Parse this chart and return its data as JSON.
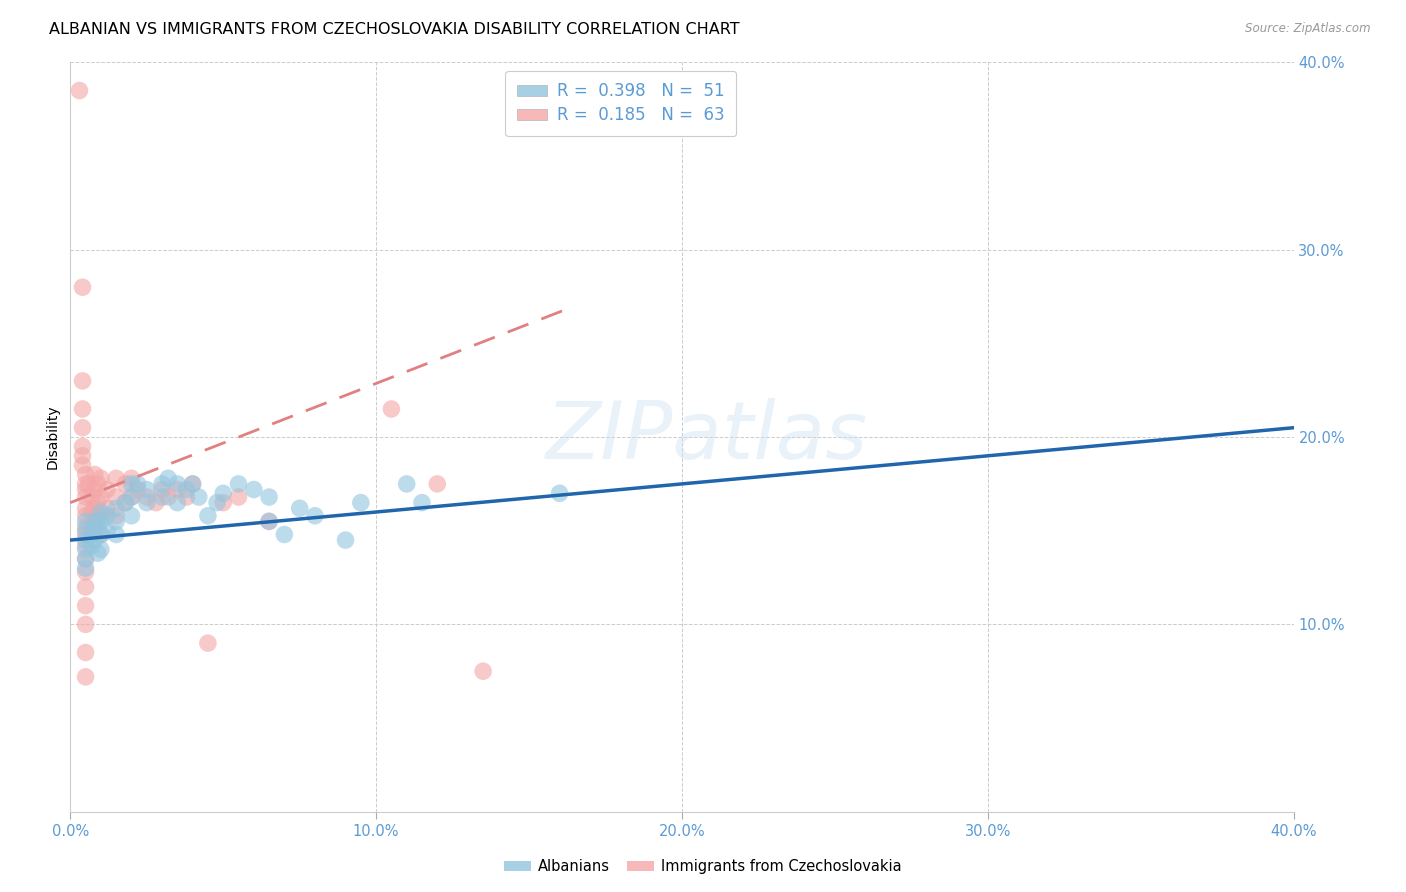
{
  "title": "ALBANIAN VS IMMIGRANTS FROM CZECHOSLOVAKIA DISABILITY CORRELATION CHART",
  "source": "Source: ZipAtlas.com",
  "ylabel": "Disability",
  "watermark": "ZIPatlas",
  "xlim": [
    0.0,
    0.4
  ],
  "ylim": [
    0.0,
    0.4
  ],
  "xticks": [
    0.0,
    0.1,
    0.2,
    0.3,
    0.4
  ],
  "yticks": [
    0.1,
    0.2,
    0.3,
    0.4
  ],
  "xticklabels": [
    "0.0%",
    "10.0%",
    "20.0%",
    "30.0%",
    "40.0%"
  ],
  "yticklabels": [
    "10.0%",
    "20.0%",
    "30.0%",
    "40.0%"
  ],
  "blue_R": 0.398,
  "blue_N": 51,
  "pink_R": 0.185,
  "pink_N": 63,
  "blue_color": "#92c5de",
  "pink_color": "#f4a6a6",
  "blue_line_color": "#2166ac",
  "pink_line_color": "#e08080",
  "blue_scatter": [
    [
      0.005,
      0.155
    ],
    [
      0.005,
      0.15
    ],
    [
      0.005,
      0.145
    ],
    [
      0.005,
      0.14
    ],
    [
      0.005,
      0.135
    ],
    [
      0.005,
      0.13
    ],
    [
      0.007,
      0.148
    ],
    [
      0.007,
      0.142
    ],
    [
      0.008,
      0.155
    ],
    [
      0.008,
      0.145
    ],
    [
      0.009,
      0.152
    ],
    [
      0.009,
      0.138
    ],
    [
      0.01,
      0.16
    ],
    [
      0.01,
      0.155
    ],
    [
      0.01,
      0.148
    ],
    [
      0.01,
      0.14
    ],
    [
      0.012,
      0.158
    ],
    [
      0.012,
      0.15
    ],
    [
      0.015,
      0.162
    ],
    [
      0.015,
      0.155
    ],
    [
      0.015,
      0.148
    ],
    [
      0.018,
      0.165
    ],
    [
      0.02,
      0.175
    ],
    [
      0.02,
      0.168
    ],
    [
      0.02,
      0.158
    ],
    [
      0.022,
      0.175
    ],
    [
      0.025,
      0.172
    ],
    [
      0.025,
      0.165
    ],
    [
      0.03,
      0.175
    ],
    [
      0.03,
      0.168
    ],
    [
      0.032,
      0.178
    ],
    [
      0.035,
      0.175
    ],
    [
      0.035,
      0.165
    ],
    [
      0.038,
      0.172
    ],
    [
      0.04,
      0.175
    ],
    [
      0.042,
      0.168
    ],
    [
      0.045,
      0.158
    ],
    [
      0.048,
      0.165
    ],
    [
      0.05,
      0.17
    ],
    [
      0.055,
      0.175
    ],
    [
      0.06,
      0.172
    ],
    [
      0.065,
      0.168
    ],
    [
      0.065,
      0.155
    ],
    [
      0.07,
      0.148
    ],
    [
      0.075,
      0.162
    ],
    [
      0.08,
      0.158
    ],
    [
      0.09,
      0.145
    ],
    [
      0.095,
      0.165
    ],
    [
      0.11,
      0.175
    ],
    [
      0.115,
      0.165
    ],
    [
      0.16,
      0.17
    ]
  ],
  "pink_scatter": [
    [
      0.003,
      0.385
    ],
    [
      0.004,
      0.28
    ],
    [
      0.004,
      0.23
    ],
    [
      0.004,
      0.215
    ],
    [
      0.004,
      0.205
    ],
    [
      0.004,
      0.195
    ],
    [
      0.004,
      0.19
    ],
    [
      0.004,
      0.185
    ],
    [
      0.005,
      0.18
    ],
    [
      0.005,
      0.175
    ],
    [
      0.005,
      0.172
    ],
    [
      0.005,
      0.168
    ],
    [
      0.005,
      0.162
    ],
    [
      0.005,
      0.158
    ],
    [
      0.005,
      0.152
    ],
    [
      0.005,
      0.148
    ],
    [
      0.005,
      0.142
    ],
    [
      0.005,
      0.135
    ],
    [
      0.005,
      0.128
    ],
    [
      0.005,
      0.12
    ],
    [
      0.005,
      0.11
    ],
    [
      0.005,
      0.1
    ],
    [
      0.005,
      0.085
    ],
    [
      0.005,
      0.072
    ],
    [
      0.006,
      0.175
    ],
    [
      0.007,
      0.168
    ],
    [
      0.007,
      0.16
    ],
    [
      0.007,
      0.152
    ],
    [
      0.008,
      0.18
    ],
    [
      0.008,
      0.172
    ],
    [
      0.008,
      0.162
    ],
    [
      0.008,
      0.152
    ],
    [
      0.009,
      0.175
    ],
    [
      0.009,
      0.165
    ],
    [
      0.009,
      0.158
    ],
    [
      0.01,
      0.178
    ],
    [
      0.01,
      0.168
    ],
    [
      0.01,
      0.158
    ],
    [
      0.01,
      0.148
    ],
    [
      0.012,
      0.172
    ],
    [
      0.012,
      0.162
    ],
    [
      0.015,
      0.178
    ],
    [
      0.015,
      0.168
    ],
    [
      0.015,
      0.158
    ],
    [
      0.018,
      0.175
    ],
    [
      0.018,
      0.165
    ],
    [
      0.02,
      0.178
    ],
    [
      0.02,
      0.168
    ],
    [
      0.022,
      0.172
    ],
    [
      0.025,
      0.168
    ],
    [
      0.028,
      0.165
    ],
    [
      0.03,
      0.172
    ],
    [
      0.032,
      0.168
    ],
    [
      0.035,
      0.172
    ],
    [
      0.038,
      0.168
    ],
    [
      0.04,
      0.175
    ],
    [
      0.045,
      0.09
    ],
    [
      0.05,
      0.165
    ],
    [
      0.055,
      0.168
    ],
    [
      0.065,
      0.155
    ],
    [
      0.105,
      0.215
    ],
    [
      0.12,
      0.175
    ],
    [
      0.135,
      0.075
    ]
  ],
  "background_color": "#ffffff",
  "grid_color": "#cccccc",
  "tick_color": "#5b9bd5",
  "title_fontsize": 11.5,
  "axis_label_fontsize": 10,
  "tick_fontsize": 10.5,
  "legend_fontsize": 12
}
